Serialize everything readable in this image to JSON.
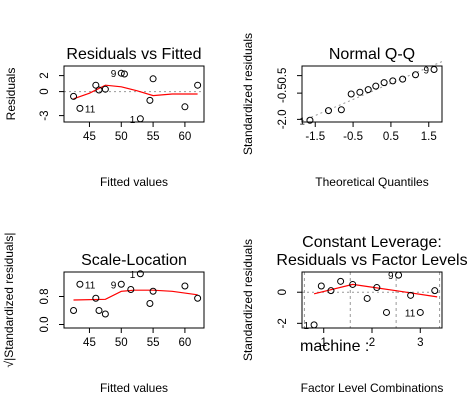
{
  "chart_data": [
    {
      "type": "scatter",
      "title": "Residuals vs Fitted",
      "xlabel": "Fitted values",
      "ylabel": "Residuals",
      "xlim": [
        41,
        63
      ],
      "ylim": [
        -3.8,
        3.2
      ],
      "xticks": [
        {
          "v": 45,
          "label": "45"
        },
        {
          "v": 50,
          "label": "50"
        },
        {
          "v": 55,
          "label": "55"
        },
        {
          "v": 60,
          "label": "60"
        }
      ],
      "yticks": [
        {
          "v": -3,
          "label": "-3"
        },
        {
          "v": 0,
          "label": "0"
        },
        {
          "v": 2,
          "label": "2"
        }
      ],
      "reference_line": 0,
      "points": [
        {
          "x": 42.5,
          "y": -0.6
        },
        {
          "x": 43.5,
          "y": -2.1
        },
        {
          "x": 46.0,
          "y": 0.8
        },
        {
          "x": 46.5,
          "y": 0.2
        },
        {
          "x": 47.5,
          "y": 0.3
        },
        {
          "x": 50.0,
          "y": 2.3
        },
        {
          "x": 50.5,
          "y": 2.2
        },
        {
          "x": 53.0,
          "y": -3.4
        },
        {
          "x": 54.5,
          "y": -1.1
        },
        {
          "x": 55.0,
          "y": 1.6
        },
        {
          "x": 60.0,
          "y": -1.9
        },
        {
          "x": 62.0,
          "y": 0.8
        }
      ],
      "smooth": [
        {
          "x": 42.5,
          "y": -0.9
        },
        {
          "x": 45.0,
          "y": -0.2
        },
        {
          "x": 47.5,
          "y": 0.8
        },
        {
          "x": 50.0,
          "y": 0.6
        },
        {
          "x": 52.5,
          "y": 0.1
        },
        {
          "x": 55.0,
          "y": -0.5
        },
        {
          "x": 58.0,
          "y": -0.3
        },
        {
          "x": 62.0,
          "y": -0.3
        }
      ],
      "point_labels": [
        {
          "x": 43.5,
          "y": -2.1,
          "text": "11",
          "side": "right"
        },
        {
          "x": 50.0,
          "y": 2.3,
          "text": "9",
          "side": "left"
        },
        {
          "x": 53.0,
          "y": -3.4,
          "text": "1",
          "side": "left"
        }
      ]
    },
    {
      "type": "scatter",
      "title": "Normal Q-Q",
      "xlabel": "Theoretical Quantiles",
      "ylabel": "Standardized residuals",
      "xlim": [
        -1.85,
        1.85
      ],
      "ylim": [
        -2.15,
        1.05
      ],
      "xticks": [
        {
          "v": -1.5,
          "label": "-1.5"
        },
        {
          "v": -0.5,
          "label": "-0.5"
        },
        {
          "v": 0.5,
          "label": "0.5"
        },
        {
          "v": 1.5,
          "label": "1.5"
        }
      ],
      "yticks": [
        {
          "v": -2,
          "label": "-2.0"
        },
        {
          "v": -0.5,
          "label": "-0.5"
        },
        {
          "v": 0.5,
          "label": "0.5"
        }
      ],
      "reference_diagonal": true,
      "points": [
        {
          "x": -1.64,
          "y": -2.05
        },
        {
          "x": -1.15,
          "y": -1.5
        },
        {
          "x": -0.81,
          "y": -1.45
        },
        {
          "x": -0.55,
          "y": -0.55
        },
        {
          "x": -0.32,
          "y": -0.45
        },
        {
          "x": -0.1,
          "y": -0.3
        },
        {
          "x": 0.1,
          "y": -0.1
        },
        {
          "x": 0.32,
          "y": 0.1
        },
        {
          "x": 0.55,
          "y": 0.2
        },
        {
          "x": 0.81,
          "y": 0.3
        },
        {
          "x": 1.15,
          "y": 0.55
        },
        {
          "x": 1.64,
          "y": 0.85
        }
      ],
      "point_labels": [
        {
          "x": -1.64,
          "y": -2.05,
          "text": "1",
          "side": "left"
        },
        {
          "x": 1.64,
          "y": 0.85,
          "text": "9",
          "side": "left"
        }
      ]
    },
    {
      "type": "scatter",
      "title": "Scale-Location",
      "xlabel": "Fitted values",
      "ylabel": "√|Standardized residuals|",
      "xlim": [
        41,
        63
      ],
      "ylim": [
        -0.1,
        1.5
      ],
      "xticks": [
        {
          "v": 45,
          "label": "45"
        },
        {
          "v": 50,
          "label": "50"
        },
        {
          "v": 55,
          "label": "55"
        },
        {
          "v": 60,
          "label": "60"
        }
      ],
      "yticks": [
        {
          "v": 0.0,
          "label": "0.0"
        },
        {
          "v": 0.8,
          "label": "0.8"
        }
      ],
      "points": [
        {
          "x": 42.5,
          "y": 0.4
        },
        {
          "x": 43.5,
          "y": 1.15
        },
        {
          "x": 46.0,
          "y": 0.75
        },
        {
          "x": 46.5,
          "y": 0.4
        },
        {
          "x": 47.5,
          "y": 0.3
        },
        {
          "x": 50.0,
          "y": 1.15
        },
        {
          "x": 51.5,
          "y": 1.0
        },
        {
          "x": 53.0,
          "y": 1.45
        },
        {
          "x": 54.5,
          "y": 0.6
        },
        {
          "x": 55.0,
          "y": 0.95
        },
        {
          "x": 60.0,
          "y": 1.1
        },
        {
          "x": 62.0,
          "y": 0.75
        }
      ],
      "smooth": [
        {
          "x": 42.5,
          "y": 0.7
        },
        {
          "x": 47.5,
          "y": 0.72
        },
        {
          "x": 50.0,
          "y": 0.95
        },
        {
          "x": 52.0,
          "y": 0.98
        },
        {
          "x": 55.0,
          "y": 0.98
        },
        {
          "x": 58.0,
          "y": 0.95
        },
        {
          "x": 62.0,
          "y": 0.85
        }
      ],
      "point_labels": [
        {
          "x": 43.5,
          "y": 1.15,
          "text": "11",
          "side": "right"
        },
        {
          "x": 50.0,
          "y": 1.15,
          "text": "9",
          "side": "left"
        },
        {
          "x": 53.0,
          "y": 1.45,
          "text": "1",
          "side": "left"
        }
      ]
    },
    {
      "type": "scatter",
      "title": "Constant Leverage:",
      "subtitle": "Residuals vs Factor Levels",
      "xlabel": "Factor Level Combinations",
      "ylabel": "Standardized residuals",
      "factor_label": "machine :",
      "xlim": [
        0.55,
        3.45
      ],
      "ylim": [
        -2.3,
        1.3
      ],
      "xticks": [
        {
          "v": 1,
          "label": "1"
        },
        {
          "v": 2,
          "label": "2"
        },
        {
          "v": 3,
          "label": "3"
        }
      ],
      "yticks": [
        {
          "v": -2,
          "label": "-2"
        },
        {
          "v": 0,
          "label": "0"
        }
      ],
      "reference_line": 0,
      "level_boundaries": [
        0.6,
        1.55,
        2.5,
        3.4
      ],
      "points": [
        {
          "x": 0.8,
          "y": -2.1
        },
        {
          "x": 0.95,
          "y": 0.4
        },
        {
          "x": 1.15,
          "y": 0.1
        },
        {
          "x": 1.35,
          "y": 0.7
        },
        {
          "x": 1.6,
          "y": 0.5
        },
        {
          "x": 1.9,
          "y": -0.4
        },
        {
          "x": 2.1,
          "y": 0.3
        },
        {
          "x": 2.3,
          "y": -1.3
        },
        {
          "x": 2.55,
          "y": 1.1
        },
        {
          "x": 2.8,
          "y": -0.2
        },
        {
          "x": 3.0,
          "y": -1.3
        },
        {
          "x": 3.3,
          "y": 0.1
        }
      ],
      "smooth": [
        {
          "x": 0.8,
          "y": -0.1
        },
        {
          "x": 1.6,
          "y": 0.5
        },
        {
          "x": 2.5,
          "y": 0.1
        },
        {
          "x": 3.35,
          "y": -0.3
        }
      ],
      "point_labels": [
        {
          "x": 0.8,
          "y": -2.1,
          "text": "1",
          "side": "left"
        },
        {
          "x": 2.55,
          "y": 1.1,
          "text": "9",
          "side": "left"
        },
        {
          "x": 3.0,
          "y": -1.3,
          "text": "11",
          "side": "left"
        }
      ]
    }
  ],
  "colors": {
    "smooth": "#ff0000",
    "reference": "#999999",
    "points": "#000000"
  }
}
